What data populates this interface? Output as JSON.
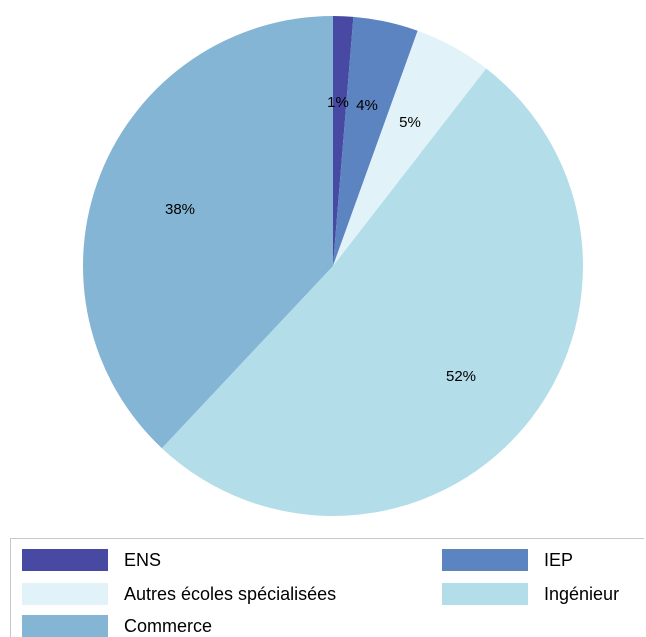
{
  "chart_data": {
    "type": "pie",
    "title": "",
    "categories": [
      "ENS",
      "IEP",
      "Autres écoles spécialisées",
      "Ingénieur",
      "Commerce"
    ],
    "values": [
      1.3,
      4.2,
      5.0,
      51.5,
      38.0
    ],
    "labels": [
      "1%",
      "4%",
      "5%",
      "52%",
      "38%"
    ],
    "colors": [
      "#4749a2",
      "#5b84c1",
      "#e1f3f8",
      "#b3dde9",
      "#84b5d4"
    ],
    "legend_position": "bottom",
    "start_angle": "12 o'clock",
    "direction": "clockwise"
  }
}
